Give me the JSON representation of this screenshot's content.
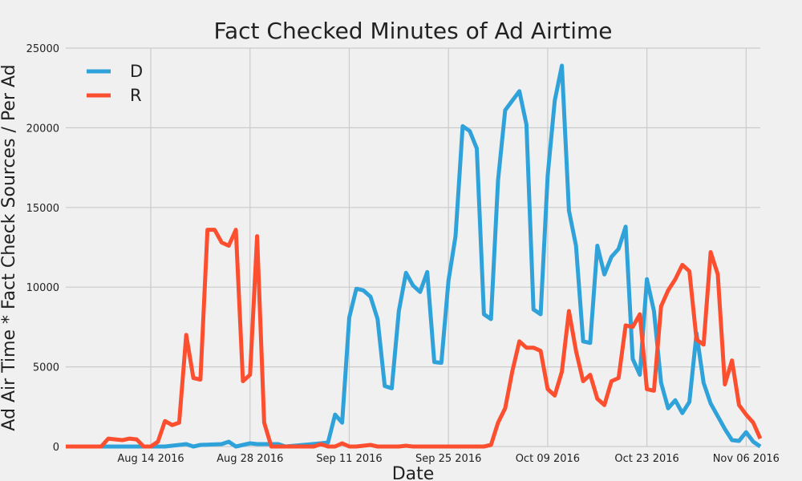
{
  "chart_data": {
    "type": "line",
    "title": "Fact Checked Minutes of Ad Airtime",
    "xlabel": "Date",
    "ylabel": "Ad Air Time * Fact Check Sources / Per Ad",
    "ylim": [
      0,
      25000
    ],
    "yticks": [
      0,
      5000,
      10000,
      15000,
      20000,
      25000
    ],
    "xlim": [
      "2016-08-02",
      "2016-11-08"
    ],
    "xticks": [
      "2016-08-14",
      "2016-08-28",
      "2016-09-11",
      "2016-09-25",
      "2016-10-09",
      "2016-10-23",
      "2016-11-06"
    ],
    "xtick_labels": [
      "Aug 14 2016",
      "Aug 28 2016",
      "Sep 11 2016",
      "Sep 25 2016",
      "Oct 09 2016",
      "Oct 23 2016",
      "Nov 06 2016"
    ],
    "grid": true,
    "legend_position": "top-left",
    "series": [
      {
        "name": "D",
        "color": "#30a2da",
        "x": [
          "2016-08-02",
          "2016-08-07",
          "2016-08-12",
          "2016-08-16",
          "2016-08-19",
          "2016-08-20",
          "2016-08-21",
          "2016-08-24",
          "2016-08-25",
          "2016-08-26",
          "2016-08-28",
          "2016-08-29",
          "2016-09-01",
          "2016-09-02",
          "2016-09-07",
          "2016-09-08",
          "2016-09-09",
          "2016-09-10",
          "2016-09-11",
          "2016-09-12",
          "2016-09-13",
          "2016-09-14",
          "2016-09-15",
          "2016-09-16",
          "2016-09-17",
          "2016-09-18",
          "2016-09-19",
          "2016-09-20",
          "2016-09-21",
          "2016-09-22",
          "2016-09-23",
          "2016-09-24",
          "2016-09-25",
          "2016-09-26",
          "2016-09-27",
          "2016-09-28",
          "2016-09-29",
          "2016-09-30",
          "2016-10-01",
          "2016-10-02",
          "2016-10-03",
          "2016-10-04",
          "2016-10-05",
          "2016-10-06",
          "2016-10-07",
          "2016-10-08",
          "2016-10-09",
          "2016-10-10",
          "2016-10-11",
          "2016-10-12",
          "2016-10-13",
          "2016-10-14",
          "2016-10-15",
          "2016-10-16",
          "2016-10-17",
          "2016-10-18",
          "2016-10-19",
          "2016-10-20",
          "2016-10-21",
          "2016-10-22",
          "2016-10-23",
          "2016-10-24",
          "2016-10-25",
          "2016-10-26",
          "2016-10-27",
          "2016-10-28",
          "2016-10-29",
          "2016-10-30",
          "2016-10-31",
          "2016-11-01",
          "2016-11-02",
          "2016-11-03",
          "2016-11-04",
          "2016-11-05",
          "2016-11-06",
          "2016-11-07",
          "2016-11-08"
        ],
        "y": [
          0,
          0,
          0,
          0,
          150,
          0,
          100,
          150,
          300,
          0,
          200,
          150,
          150,
          0,
          200,
          250,
          2000,
          1500,
          8100,
          9900,
          9800,
          9400,
          8000,
          3800,
          3650,
          8500,
          10900,
          10100,
          9700,
          10950,
          5300,
          5250,
          10400,
          13200,
          20100,
          19800,
          18700,
          8300,
          8000,
          16700,
          21100,
          21700,
          22300,
          20200,
          8600,
          8300,
          17000,
          21700,
          23900,
          14800,
          12600,
          6600,
          6500,
          12600,
          10800,
          11900,
          12400,
          13800,
          5500,
          4500,
          10500,
          8500,
          4000,
          2400,
          2900,
          2100,
          2800,
          7100,
          4000,
          2700,
          1900,
          1100,
          400,
          350,
          900,
          300,
          0
        ]
      },
      {
        "name": "R",
        "color": "#fc4f30",
        "x": [
          "2016-08-02",
          "2016-08-07",
          "2016-08-08",
          "2016-08-09",
          "2016-08-10",
          "2016-08-11",
          "2016-08-12",
          "2016-08-13",
          "2016-08-14",
          "2016-08-15",
          "2016-08-16",
          "2016-08-17",
          "2016-08-18",
          "2016-08-19",
          "2016-08-20",
          "2016-08-21",
          "2016-08-22",
          "2016-08-23",
          "2016-08-24",
          "2016-08-25",
          "2016-08-26",
          "2016-08-27",
          "2016-08-28",
          "2016-08-29",
          "2016-08-30",
          "2016-08-31",
          "2016-09-02",
          "2016-09-06",
          "2016-09-07",
          "2016-09-08",
          "2016-09-09",
          "2016-09-10",
          "2016-09-11",
          "2016-09-12",
          "2016-09-14",
          "2016-09-15",
          "2016-09-18",
          "2016-09-19",
          "2016-09-20",
          "2016-09-26",
          "2016-09-30",
          "2016-10-01",
          "2016-10-02",
          "2016-10-03",
          "2016-10-04",
          "2016-10-05",
          "2016-10-06",
          "2016-10-07",
          "2016-10-08",
          "2016-10-09",
          "2016-10-10",
          "2016-10-11",
          "2016-10-12",
          "2016-10-13",
          "2016-10-14",
          "2016-10-15",
          "2016-10-16",
          "2016-10-17",
          "2016-10-18",
          "2016-10-19",
          "2016-10-20",
          "2016-10-21",
          "2016-10-22",
          "2016-10-23",
          "2016-10-24",
          "2016-10-25",
          "2016-10-26",
          "2016-10-27",
          "2016-10-28",
          "2016-10-29",
          "2016-10-30",
          "2016-10-31",
          "2016-11-01",
          "2016-11-02",
          "2016-11-03",
          "2016-11-04",
          "2016-11-05",
          "2016-11-06",
          "2016-11-07",
          "2016-11-08"
        ],
        "y": [
          0,
          0,
          500,
          450,
          400,
          500,
          450,
          0,
          0,
          300,
          1600,
          1350,
          1500,
          7000,
          4300,
          4200,
          13600,
          13600,
          12800,
          12600,
          13600,
          4100,
          4500,
          13200,
          1500,
          0,
          0,
          0,
          150,
          0,
          0,
          200,
          0,
          0,
          100,
          0,
          0,
          50,
          0,
          0,
          0,
          100,
          1500,
          2400,
          4700,
          6600,
          6200,
          6200,
          6000,
          3600,
          3200,
          4700,
          8500,
          6000,
          4100,
          4500,
          3000,
          2600,
          4100,
          4300,
          7600,
          7500,
          8300,
          3600,
          3500,
          8800,
          9800,
          10500,
          11400,
          11000,
          6700,
          6400,
          12200,
          10800,
          3900,
          5400,
          2600,
          2000,
          1500,
          500
        ]
      }
    ]
  }
}
